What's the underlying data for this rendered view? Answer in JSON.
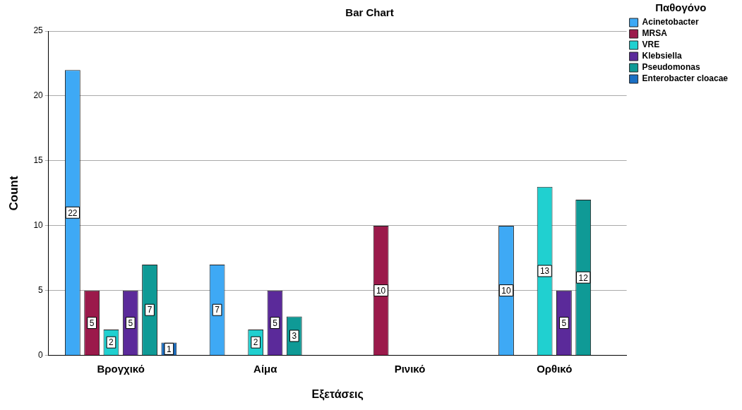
{
  "chart_data": {
    "type": "bar",
    "title": "Bar Chart",
    "xlabel": "Εξετάσεις",
    "ylabel": "Count",
    "legend_title": "Παθογόνο",
    "categories": [
      "Βρογχικό",
      "Αίμα",
      "Ρινικό",
      "Ορθικό"
    ],
    "series": [
      {
        "name": "Acinetobacter",
        "color": "#3ea9f5",
        "values": [
          22,
          7,
          null,
          10
        ]
      },
      {
        "name": "MRSA",
        "color": "#9b1a4b",
        "values": [
          5,
          null,
          10,
          null
        ]
      },
      {
        "name": "VRE",
        "color": "#20d0d0",
        "values": [
          2,
          2,
          null,
          13
        ]
      },
      {
        "name": "Klebsiella",
        "color": "#5b2a9a",
        "values": [
          5,
          5,
          null,
          5
        ]
      },
      {
        "name": "Pseudomonas",
        "color": "#0f9a96",
        "values": [
          7,
          3,
          null,
          12
        ]
      },
      {
        "name": "Enterobacter cloacae",
        "color": "#1a6fc4",
        "values": [
          1,
          null,
          null,
          null
        ]
      }
    ],
    "ylim": [
      0,
      25
    ],
    "yticks": [
      0,
      5,
      10,
      15,
      20,
      25
    ],
    "grid": "y",
    "legend": "top right",
    "data_labels": true
  }
}
